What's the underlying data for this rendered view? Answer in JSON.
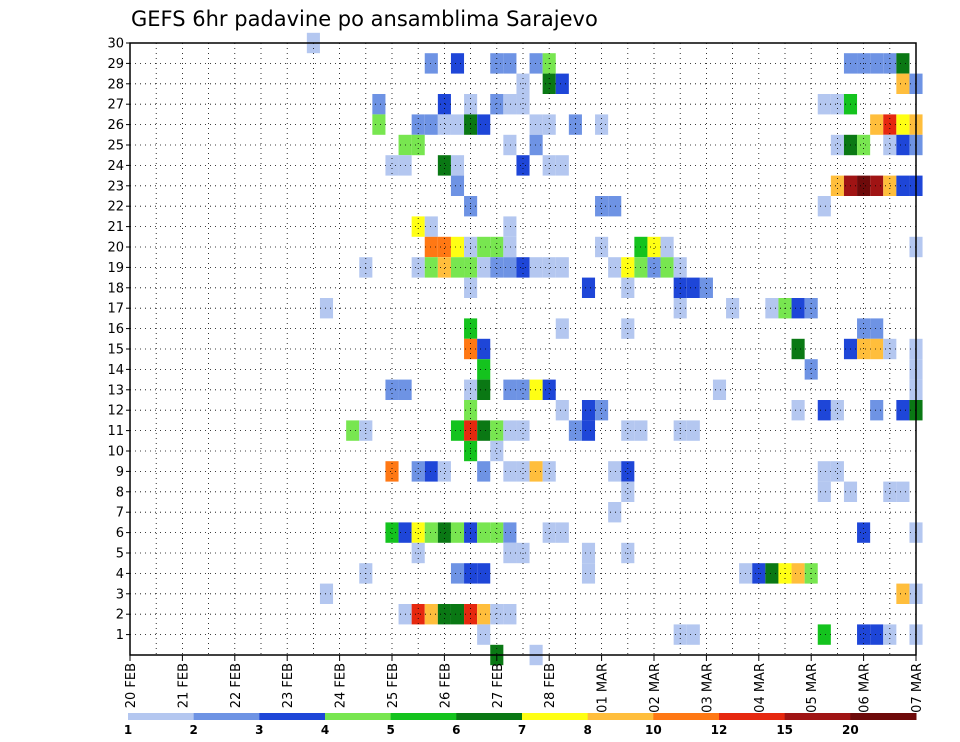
{
  "chart_data": {
    "type": "heatmap",
    "title": "GEFS 6hr padavine po ansamblima Sarajevo",
    "x_tick_labels": [
      "20 FEB",
      "21 FEB",
      "22 FEB",
      "23 FEB",
      "24 FEB",
      "25 FEB",
      "26 FEB",
      "27 FEB",
      "28 FEB",
      "01 MAR",
      "02 MAR",
      "03 MAR",
      "04 MAR",
      "05 MAR",
      "06 MAR",
      "07 MAR"
    ],
    "y_tick_labels": [
      "1",
      "2",
      "3",
      "4",
      "5",
      "6",
      "7",
      "8",
      "9",
      "10",
      "11",
      "12",
      "13",
      "14",
      "15",
      "16",
      "17",
      "18",
      "19",
      "20",
      "21",
      "22",
      "23",
      "24",
      "25",
      "26",
      "27",
      "28",
      "29",
      "30"
    ],
    "x_range_steps": [
      0,
      60
    ],
    "y_range_members": [
      0,
      30
    ],
    "grid": true,
    "colorbar": {
      "position": "bottom",
      "levels": [
        "1",
        "2",
        "3",
        "4",
        "5",
        "6",
        "7",
        "8",
        "10",
        "12",
        "15",
        "20"
      ],
      "colors": [
        "#b4c7f0",
        "#6e93e4",
        "#1e46d8",
        "#78e650",
        "#14c31e",
        "#0a7814",
        "#ffff14",
        "#ffbe3c",
        "#ff7814",
        "#e6280f",
        "#a01414",
        "#6e0a0a"
      ]
    },
    "cells": [
      [
        14,
        30,
        1
      ],
      [
        23,
        29,
        2
      ],
      [
        25,
        29,
        3
      ],
      [
        28,
        29,
        2
      ],
      [
        29,
        29,
        2
      ],
      [
        31,
        29,
        2
      ],
      [
        32,
        29,
        4
      ],
      [
        55,
        29,
        2
      ],
      [
        56,
        29,
        2
      ],
      [
        57,
        29,
        2
      ],
      [
        58,
        29,
        2
      ],
      [
        59,
        29,
        6
      ],
      [
        30,
        28,
        1
      ],
      [
        32,
        28,
        6
      ],
      [
        33,
        28,
        3
      ],
      [
        59,
        28,
        8
      ],
      [
        60,
        28,
        2
      ],
      [
        19,
        27,
        2
      ],
      [
        24,
        27,
        3
      ],
      [
        26,
        27,
        1
      ],
      [
        28,
        27,
        2
      ],
      [
        29,
        27,
        1
      ],
      [
        30,
        27,
        1
      ],
      [
        53,
        27,
        1
      ],
      [
        54,
        27,
        1
      ],
      [
        55,
        27,
        5
      ],
      [
        19,
        26,
        4
      ],
      [
        22,
        26,
        2
      ],
      [
        23,
        26,
        2
      ],
      [
        24,
        26,
        1
      ],
      [
        25,
        26,
        1
      ],
      [
        26,
        26,
        6
      ],
      [
        27,
        26,
        3
      ],
      [
        31,
        26,
        1
      ],
      [
        32,
        26,
        1
      ],
      [
        34,
        26,
        2
      ],
      [
        36,
        26,
        1
      ],
      [
        57,
        26,
        8
      ],
      [
        58,
        26,
        10
      ],
      [
        59,
        26,
        7
      ],
      [
        60,
        26,
        8
      ],
      [
        21,
        25,
        4
      ],
      [
        22,
        25,
        4
      ],
      [
        29,
        25,
        1
      ],
      [
        31,
        25,
        2
      ],
      [
        54,
        25,
        1
      ],
      [
        55,
        25,
        6
      ],
      [
        56,
        25,
        4
      ],
      [
        58,
        25,
        1
      ],
      [
        59,
        25,
        3
      ],
      [
        60,
        25,
        2
      ],
      [
        20,
        24,
        1
      ],
      [
        21,
        24,
        1
      ],
      [
        24,
        24,
        6
      ],
      [
        25,
        24,
        1
      ],
      [
        30,
        24,
        3
      ],
      [
        32,
        24,
        1
      ],
      [
        33,
        24,
        1
      ],
      [
        25,
        23,
        2
      ],
      [
        54,
        23,
        8
      ],
      [
        55,
        23,
        11
      ],
      [
        56,
        23,
        12
      ],
      [
        57,
        23,
        11
      ],
      [
        58,
        23,
        8
      ],
      [
        59,
        23,
        3
      ],
      [
        60,
        23,
        3
      ],
      [
        26,
        22,
        2
      ],
      [
        36,
        22,
        2
      ],
      [
        37,
        22,
        2
      ],
      [
        53,
        22,
        1
      ],
      [
        22,
        21,
        7
      ],
      [
        23,
        21,
        1
      ],
      [
        29,
        21,
        1
      ],
      [
        23,
        20,
        9
      ],
      [
        24,
        20,
        9
      ],
      [
        25,
        20,
        7
      ],
      [
        26,
        20,
        1
      ],
      [
        27,
        20,
        4
      ],
      [
        28,
        20,
        4
      ],
      [
        29,
        20,
        1
      ],
      [
        36,
        20,
        1
      ],
      [
        39,
        20,
        5
      ],
      [
        40,
        20,
        7
      ],
      [
        41,
        20,
        1
      ],
      [
        60,
        20,
        1
      ],
      [
        18,
        19,
        1
      ],
      [
        22,
        19,
        1
      ],
      [
        23,
        19,
        4
      ],
      [
        24,
        19,
        8
      ],
      [
        25,
        19,
        4
      ],
      [
        26,
        19,
        4
      ],
      [
        27,
        19,
        1
      ],
      [
        28,
        19,
        2
      ],
      [
        29,
        19,
        2
      ],
      [
        30,
        19,
        3
      ],
      [
        31,
        19,
        1
      ],
      [
        32,
        19,
        1
      ],
      [
        33,
        19,
        1
      ],
      [
        37,
        19,
        1
      ],
      [
        38,
        19,
        7
      ],
      [
        39,
        19,
        4
      ],
      [
        40,
        19,
        2
      ],
      [
        41,
        19,
        4
      ],
      [
        42,
        19,
        1
      ],
      [
        26,
        18,
        1
      ],
      [
        35,
        18,
        3
      ],
      [
        38,
        18,
        1
      ],
      [
        42,
        18,
        3
      ],
      [
        43,
        18,
        3
      ],
      [
        44,
        18,
        2
      ],
      [
        15,
        17,
        1
      ],
      [
        42,
        17,
        1
      ],
      [
        46,
        17,
        1
      ],
      [
        49,
        17,
        1
      ],
      [
        50,
        17,
        4
      ],
      [
        51,
        17,
        3
      ],
      [
        52,
        17,
        2
      ],
      [
        26,
        16,
        5
      ],
      [
        33,
        16,
        1
      ],
      [
        38,
        16,
        1
      ],
      [
        56,
        16,
        2
      ],
      [
        57,
        16,
        2
      ],
      [
        26,
        15,
        9
      ],
      [
        27,
        15,
        3
      ],
      [
        51,
        15,
        6
      ],
      [
        55,
        15,
        3
      ],
      [
        56,
        15,
        8
      ],
      [
        57,
        15,
        8
      ],
      [
        58,
        15,
        1
      ],
      [
        60,
        15,
        1
      ],
      [
        27,
        14,
        5
      ],
      [
        52,
        14,
        2
      ],
      [
        60,
        14,
        1
      ],
      [
        20,
        13,
        2
      ],
      [
        21,
        13,
        2
      ],
      [
        26,
        13,
        1
      ],
      [
        27,
        13,
        6
      ],
      [
        29,
        13,
        2
      ],
      [
        30,
        13,
        2
      ],
      [
        31,
        13,
        7
      ],
      [
        32,
        13,
        3
      ],
      [
        45,
        13,
        1
      ],
      [
        60,
        13,
        1
      ],
      [
        26,
        12,
        4
      ],
      [
        33,
        12,
        1
      ],
      [
        35,
        12,
        3
      ],
      [
        36,
        12,
        2
      ],
      [
        51,
        12,
        1
      ],
      [
        53,
        12,
        3
      ],
      [
        54,
        12,
        1
      ],
      [
        57,
        12,
        2
      ],
      [
        59,
        12,
        3
      ],
      [
        60,
        12,
        6
      ],
      [
        17,
        11,
        4
      ],
      [
        18,
        11,
        1
      ],
      [
        25,
        11,
        5
      ],
      [
        26,
        11,
        10
      ],
      [
        27,
        11,
        6
      ],
      [
        28,
        11,
        4
      ],
      [
        29,
        11,
        1
      ],
      [
        30,
        11,
        1
      ],
      [
        34,
        11,
        2
      ],
      [
        35,
        11,
        3
      ],
      [
        38,
        11,
        1
      ],
      [
        39,
        11,
        1
      ],
      [
        42,
        11,
        1
      ],
      [
        43,
        11,
        1
      ],
      [
        26,
        10,
        5
      ],
      [
        28,
        10,
        1
      ],
      [
        20,
        9,
        9
      ],
      [
        22,
        9,
        2
      ],
      [
        23,
        9,
        3
      ],
      [
        24,
        9,
        1
      ],
      [
        27,
        9,
        2
      ],
      [
        29,
        9,
        1
      ],
      [
        30,
        9,
        1
      ],
      [
        31,
        9,
        8
      ],
      [
        32,
        9,
        1
      ],
      [
        37,
        9,
        1
      ],
      [
        38,
        9,
        3
      ],
      [
        53,
        9,
        1
      ],
      [
        54,
        9,
        1
      ],
      [
        38,
        8,
        1
      ],
      [
        53,
        8,
        1
      ],
      [
        55,
        8,
        1
      ],
      [
        58,
        8,
        1
      ],
      [
        59,
        8,
        1
      ],
      [
        37,
        7,
        1
      ],
      [
        20,
        6,
        5
      ],
      [
        21,
        6,
        3
      ],
      [
        22,
        6,
        7
      ],
      [
        23,
        6,
        4
      ],
      [
        24,
        6,
        6
      ],
      [
        25,
        6,
        4
      ],
      [
        26,
        6,
        3
      ],
      [
        27,
        6,
        4
      ],
      [
        28,
        6,
        4
      ],
      [
        29,
        6,
        2
      ],
      [
        32,
        6,
        1
      ],
      [
        33,
        6,
        1
      ],
      [
        56,
        6,
        3
      ],
      [
        60,
        6,
        1
      ],
      [
        22,
        5,
        1
      ],
      [
        29,
        5,
        1
      ],
      [
        30,
        5,
        1
      ],
      [
        35,
        5,
        1
      ],
      [
        38,
        5,
        1
      ],
      [
        18,
        4,
        1
      ],
      [
        25,
        4,
        2
      ],
      [
        26,
        4,
        3
      ],
      [
        27,
        4,
        3
      ],
      [
        35,
        4,
        1
      ],
      [
        47,
        4,
        1
      ],
      [
        48,
        4,
        3
      ],
      [
        49,
        4,
        6
      ],
      [
        50,
        4,
        7
      ],
      [
        51,
        4,
        8
      ],
      [
        52,
        4,
        4
      ],
      [
        15,
        3,
        1
      ],
      [
        59,
        3,
        8
      ],
      [
        60,
        3,
        1
      ],
      [
        21,
        2,
        1
      ],
      [
        22,
        2,
        10
      ],
      [
        23,
        2,
        8
      ],
      [
        24,
        2,
        6
      ],
      [
        25,
        2,
        6
      ],
      [
        26,
        2,
        10
      ],
      [
        27,
        2,
        8
      ],
      [
        28,
        2,
        1
      ],
      [
        29,
        2,
        1
      ],
      [
        27,
        1,
        1
      ],
      [
        42,
        1,
        1
      ],
      [
        43,
        1,
        1
      ],
      [
        53,
        1,
        5
      ],
      [
        56,
        1,
        3
      ],
      [
        57,
        1,
        3
      ],
      [
        58,
        1,
        1
      ],
      [
        60,
        1,
        1
      ],
      [
        28,
        0,
        6
      ],
      [
        31,
        0,
        1
      ]
    ]
  }
}
